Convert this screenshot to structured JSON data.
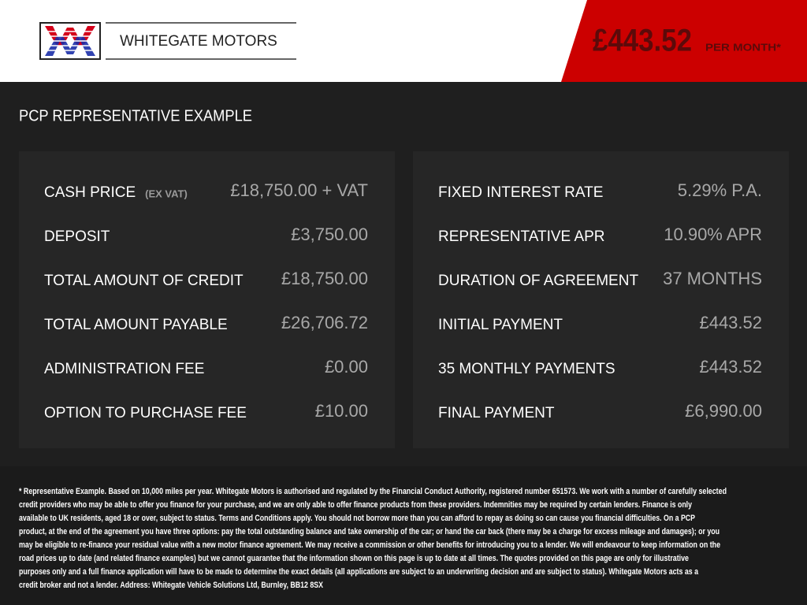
{
  "header": {
    "brand": "WHITEGATE MOTORS",
    "price": "£443.52",
    "price_suffix": "PER MONTH*"
  },
  "section_title": "PCP REPRESENTATIVE EXAMPLE",
  "left_panel": [
    {
      "label": "CASH PRICE",
      "note": "(EX VAT)",
      "value": "£18,750.00 + VAT"
    },
    {
      "label": "DEPOSIT",
      "value": "£3,750.00"
    },
    {
      "label": "TOTAL AMOUNT OF CREDIT",
      "value": "£18,750.00"
    },
    {
      "label": "TOTAL AMOUNT PAYABLE",
      "value": "£26,706.72"
    },
    {
      "label": "ADMINISTRATION FEE",
      "value": "£0.00"
    },
    {
      "label": "OPTION TO PURCHASE FEE",
      "value": "£10.00"
    }
  ],
  "right_panel": [
    {
      "label": "FIXED INTEREST RATE",
      "value": "5.29% P.A."
    },
    {
      "label": "REPRESENTATIVE APR",
      "value": "10.90% APR"
    },
    {
      "label": "DURATION OF AGREEMENT",
      "value": "37 MONTHS"
    },
    {
      "label": "INITIAL PAYMENT",
      "value": "£443.52"
    },
    {
      "label": "35 MONTHLY PAYMENTS",
      "value": "£443.52"
    },
    {
      "label": "FINAL PAYMENT",
      "value": "£6,990.00"
    }
  ],
  "disclaimer": [
    "* Representative Example. Based on 10,000 miles per year. Whitegate Motors is authorised and regulated by the Financial Conduct Authority, registered number 651573. We work with a number of carefully selected",
    "credit providers who may be able to offer you finance for your purchase, and we are only able to offer finance products from these providers. Indemnities may be required by certain lenders. Finance is only",
    "available to UK residents, aged 18 or over, subject to status. Terms and Conditions apply. You should not borrow more than you can afford to repay as doing so can cause you financial difficulties. On a PCP",
    "product, at the end of the agreement you have three options: pay the total outstanding balance and take ownership of the car; or hand the car back (there may be a charge for excess mileage and damages); or you",
    "may be eligible to re-finance your residual value with a new motor finance agreement. We may receive a commission or other benefits for introducing you to a lender. We will endeavour to keep information on the",
    "road prices up to date (and related finance examples) but we cannot guarantee that the information shown on this page is up to date at all times. The quotes provided on this page are only for illustrative",
    "purposes only and a full finance application will have to be made to determine the exact details (all applications are subject to an underwriting decision and are subject to status). Whitegate Motors acts as a",
    "credit broker and not a lender. Address: Whitegate Vehicle Solutions Ltd, Burnley, BB12 8SX"
  ]
}
